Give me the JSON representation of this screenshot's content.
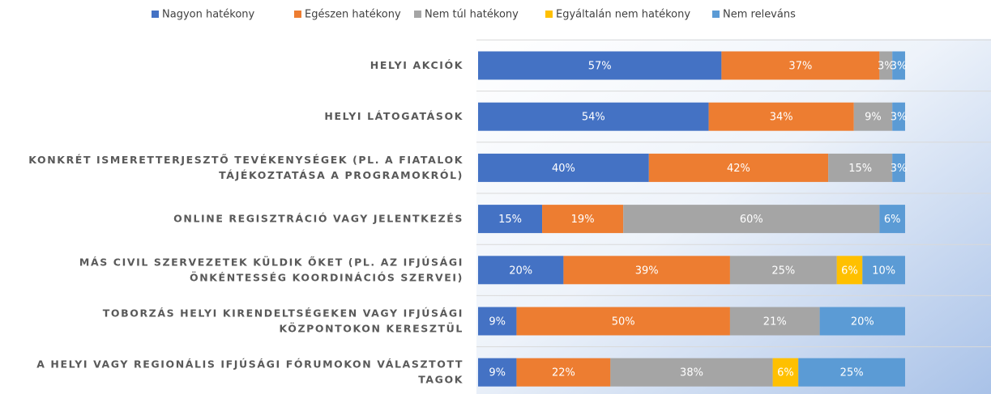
{
  "chart_data": {
    "type": "stacked-bar-horizontal",
    "categories": [
      [
        "HELYI AKCIÓK"
      ],
      [
        "HELYI LÁTOGATÁSOK"
      ],
      [
        "KONKRÉT ISMERETTERJESZTŐ TEVÉKENYSÉGEK (PL. A FIATALOK",
        "TÁJÉKOZTATÁSA A PROGRAMOKRÓL)"
      ],
      [
        "ONLINE REGISZTRÁCIÓ VAGY JELENTKEZÉS"
      ],
      [
        "MÁS CIVIL SZERVEZETEK KÜLDIK ŐKET (PL. AZ IFJÚSÁGI",
        "ÖNKÉNTESSÉG KOORDINÁCIÓS SZERVEI)"
      ],
      [
        "TOBORZÁS HELYI KIRENDELTSÉGEKEN VAGY IFJÚSÁGI",
        "KÖZPONTOKON KERESZTÜL"
      ],
      [
        "A HELYI VAGY REGIONÁLIS IFJÚSÁGI FÓRUMOKON VÁLASZTOTT",
        "TAGOK"
      ]
    ],
    "series": [
      {
        "name": "Nagyon hatékony",
        "color": "#4472c4",
        "values": [
          57,
          54,
          40,
          15,
          20,
          9,
          9
        ],
        "value_labels": [
          "57%",
          "54%",
          "40%",
          "15%",
          "20%",
          "9%",
          "9%"
        ]
      },
      {
        "name": "Egészen hatékony",
        "color": "#ed7d31",
        "values": [
          37,
          34,
          42,
          19,
          39,
          50,
          22
        ],
        "value_labels": [
          "37%",
          "34%",
          "42%",
          "19%",
          "39%",
          "50%",
          "22%"
        ]
      },
      {
        "name": "Nem túl hatékony",
        "color": "#a5a5a5",
        "values": [
          3,
          9,
          15,
          60,
          25,
          21,
          38
        ],
        "value_labels": [
          "3%",
          "9%",
          "15%",
          "60%",
          "25%",
          "21%",
          "38%"
        ]
      },
      {
        "name": "Egyáltalán nem hatékony",
        "color": "#ffc000",
        "values": [
          null,
          null,
          null,
          null,
          6,
          null,
          6
        ],
        "value_labels": [
          null,
          null,
          null,
          null,
          "6%",
          null,
          "6%"
        ]
      },
      {
        "name": "Nem releváns",
        "color": "#5b9bd5",
        "values": [
          3,
          3,
          3,
          6,
          10,
          20,
          25
        ],
        "value_labels": [
          "3%",
          "3%",
          "3%",
          "6%",
          "10%",
          "20%",
          "25%"
        ]
      }
    ],
    "xlim": [
      0,
      100
    ],
    "legend": "top"
  }
}
